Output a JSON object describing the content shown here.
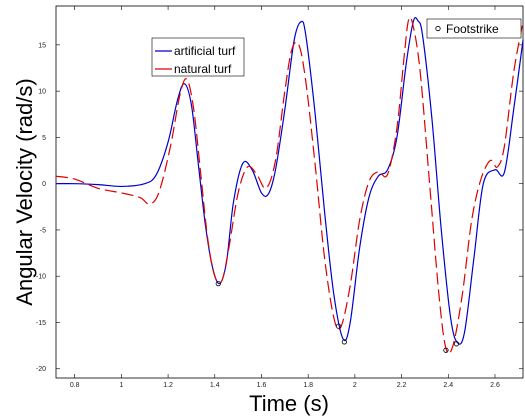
{
  "chart_data": {
    "type": "line",
    "title": "",
    "xlabel": "Time (s)",
    "ylabel": "Angular Velocity (rad/s)",
    "xlim": [
      0.72,
      2.72
    ],
    "ylim": [
      -21,
      19.2
    ],
    "xticks": [
      0.8,
      1.0,
      1.2,
      1.4,
      1.6,
      1.8,
      2.0,
      2.2,
      2.4,
      2.6
    ],
    "xtick_labels": [
      "0.8",
      "1",
      "1.2",
      "1.4",
      "1.6",
      "1.8",
      "2",
      "2.2",
      "2.4",
      "2.6"
    ],
    "yticks": [
      -20,
      -15,
      -10,
      -5,
      0,
      5,
      10,
      15
    ],
    "ytick_labels": [
      "-20",
      "-15",
      "-10",
      "-5",
      "0",
      "5",
      "10",
      "15"
    ],
    "grid": false,
    "legend_placement": "top-left-center",
    "series": [
      {
        "name": "artificial turf",
        "color": "#0000cc",
        "style": "solid",
        "x": [
          0.72,
          0.8,
          0.9,
          1.0,
          1.1,
          1.15,
          1.2,
          1.24,
          1.27,
          1.3,
          1.33,
          1.36,
          1.39,
          1.42,
          1.45,
          1.48,
          1.52,
          1.56,
          1.6,
          1.63,
          1.66,
          1.7,
          1.74,
          1.77,
          1.79,
          1.83,
          1.87,
          1.91,
          1.95,
          1.98,
          2.02,
          2.06,
          2.1,
          2.14,
          2.18,
          2.22,
          2.25,
          2.27,
          2.29,
          2.33,
          2.37,
          2.41,
          2.44,
          2.47,
          2.51,
          2.55,
          2.6,
          2.64,
          2.68,
          2.72
        ],
        "y": [
          0.0,
          0.0,
          -0.1,
          -0.3,
          0.0,
          1.0,
          4.5,
          9.0,
          10.8,
          8.5,
          2.0,
          -4.5,
          -9.0,
          -10.8,
          -8.5,
          -2.0,
          2.2,
          1.5,
          -1.0,
          -1.1,
          1.5,
          8.0,
          15.5,
          17.5,
          16.0,
          7.5,
          -3.0,
          -12.0,
          -16.8,
          -15.0,
          -7.0,
          -1.5,
          0.8,
          1.5,
          5.0,
          13.0,
          17.5,
          17.6,
          16.0,
          7.0,
          -5.0,
          -14.5,
          -17.2,
          -16.0,
          -8.0,
          0.0,
          1.5,
          1.2,
          8.0,
          15.5
        ]
      },
      {
        "name": "natural turf",
        "color": "#dd0000",
        "style": "dashed",
        "x": [
          0.72,
          0.8,
          0.9,
          1.0,
          1.08,
          1.12,
          1.16,
          1.21,
          1.25,
          1.28,
          1.31,
          1.34,
          1.37,
          1.4,
          1.43,
          1.46,
          1.5,
          1.54,
          1.58,
          1.62,
          1.66,
          1.7,
          1.73,
          1.76,
          1.79,
          1.83,
          1.87,
          1.91,
          1.94,
          1.98,
          2.02,
          2.06,
          2.1,
          2.14,
          2.18,
          2.21,
          2.23,
          2.25,
          2.28,
          2.32,
          2.36,
          2.39,
          2.42,
          2.46,
          2.5,
          2.54,
          2.58,
          2.61,
          2.64,
          2.68,
          2.72
        ],
        "y": [
          0.8,
          0.5,
          -0.5,
          -1.0,
          -1.5,
          -2.2,
          -1.0,
          4.0,
          9.5,
          11.3,
          8.0,
          1.0,
          -6.0,
          -10.0,
          -10.5,
          -7.0,
          -1.0,
          1.8,
          1.0,
          -0.5,
          2.5,
          10.0,
          14.5,
          15.0,
          11.0,
          2.0,
          -8.0,
          -14.5,
          -15.5,
          -11.0,
          -4.0,
          0.2,
          1.3,
          1.0,
          6.0,
          13.5,
          17.7,
          17.0,
          12.0,
          0.0,
          -12.0,
          -17.8,
          -17.5,
          -12.0,
          -4.0,
          0.5,
          2.5,
          1.8,
          4.0,
          12.0,
          17.5
        ]
      },
      {
        "name": "Footstrike",
        "type": "scatter",
        "marker": "circle-open",
        "color": "#000000",
        "x": [
          1.415,
          1.93,
          1.955,
          2.39,
          2.435
        ],
        "y": [
          -10.8,
          -15.4,
          -17.1,
          -18.0,
          -17.3
        ]
      }
    ],
    "legends": [
      {
        "placement": "top-left-center",
        "entries": [
          "artificial turf",
          "natural turf"
        ]
      },
      {
        "placement": "top-right",
        "entries": [
          "Footstrike"
        ]
      }
    ]
  }
}
